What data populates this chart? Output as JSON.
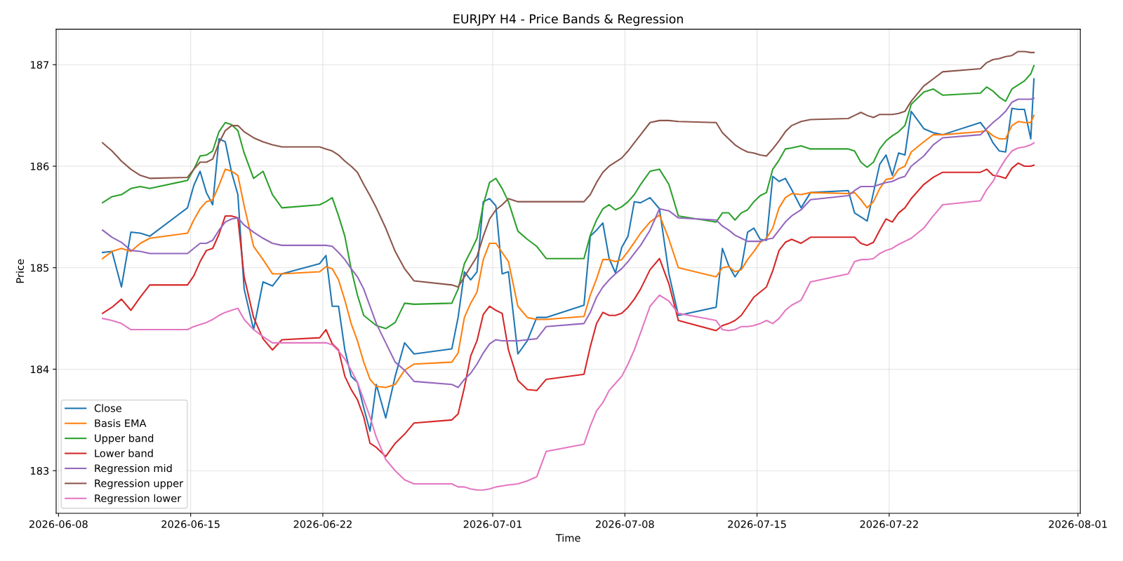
{
  "chart_data": {
    "type": "line",
    "title": "EURJPY H4 - Price Bands & Regression",
    "xlabel": "Time",
    "ylabel": "Price",
    "x": [
      "2026-06-10T08:00",
      "2026-06-10T20:00",
      "2026-06-11T08:00",
      "2026-06-11T20:00",
      "2026-06-12T08:00",
      "2026-06-12T20:00",
      "2026-06-14T20:00",
      "2026-06-15T04:00",
      "2026-06-15T12:00",
      "2026-06-15T20:00",
      "2026-06-16T04:00",
      "2026-06-16T12:00",
      "2026-06-16T20:00",
      "2026-06-17T04:00",
      "2026-06-17T12:00",
      "2026-06-17T20:00",
      "2026-06-18T08:00",
      "2026-06-18T20:00",
      "2026-06-19T08:00",
      "2026-06-19T20:00",
      "2026-06-21T20:00",
      "2026-06-22T04:00",
      "2026-06-22T12:00",
      "2026-06-22T20:00",
      "2026-06-23T04:00",
      "2026-06-23T12:00",
      "2026-06-23T20:00",
      "2026-06-24T04:00",
      "2026-06-24T12:00",
      "2026-06-24T20:00",
      "2026-06-25T08:00",
      "2026-06-25T20:00",
      "2026-06-26T08:00",
      "2026-06-26T20:00",
      "2026-06-28T20:00",
      "2026-06-29T04:00",
      "2026-06-29T12:00",
      "2026-06-29T20:00",
      "2026-06-30T04:00",
      "2026-06-30T12:00",
      "2026-06-30T20:00",
      "2026-07-01T04:00",
      "2026-07-01T12:00",
      "2026-07-01T20:00",
      "2026-07-02T08:00",
      "2026-07-02T20:00",
      "2026-07-03T08:00",
      "2026-07-03T20:00",
      "2026-07-05T20:00",
      "2026-07-06T04:00",
      "2026-07-06T12:00",
      "2026-07-06T20:00",
      "2026-07-07T04:00",
      "2026-07-07T12:00",
      "2026-07-07T20:00",
      "2026-07-08T04:00",
      "2026-07-08T12:00",
      "2026-07-08T20:00",
      "2026-07-09T08:00",
      "2026-07-09T20:00",
      "2026-07-10T08:00",
      "2026-07-10T20:00",
      "2026-07-12T20:00",
      "2026-07-13T04:00",
      "2026-07-13T12:00",
      "2026-07-13T20:00",
      "2026-07-14T04:00",
      "2026-07-14T12:00",
      "2026-07-14T20:00",
      "2026-07-15T04:00",
      "2026-07-15T12:00",
      "2026-07-15T20:00",
      "2026-07-16T04:00",
      "2026-07-16T12:00",
      "2026-07-16T20:00",
      "2026-07-17T08:00",
      "2026-07-17T20:00",
      "2026-07-19T20:00",
      "2026-07-20T04:00",
      "2026-07-20T12:00",
      "2026-07-20T20:00",
      "2026-07-21T04:00",
      "2026-07-21T12:00",
      "2026-07-21T20:00",
      "2026-07-22T04:00",
      "2026-07-22T12:00",
      "2026-07-22T20:00",
      "2026-07-23T04:00",
      "2026-07-23T20:00",
      "2026-07-24T08:00",
      "2026-07-24T20:00",
      "2026-07-26T20:00",
      "2026-07-27T04:00",
      "2026-07-27T12:00",
      "2026-07-27T20:00",
      "2026-07-28T04:00",
      "2026-07-28T12:00",
      "2026-07-28T20:00",
      "2026-07-29T04:00",
      "2026-07-29T12:00",
      "2026-07-29T16:00"
    ],
    "series": [
      {
        "name": "Close",
        "color": "#1f77b4",
        "values": [
          185.15,
          185.16,
          184.81,
          185.35,
          185.34,
          185.31,
          185.59,
          185.81,
          185.95,
          185.74,
          185.62,
          186.27,
          186.24,
          185.94,
          185.72,
          184.79,
          184.39,
          184.86,
          184.82,
          184.94,
          185.04,
          185.12,
          184.62,
          184.62,
          184.19,
          183.93,
          183.87,
          183.62,
          183.39,
          183.85,
          183.52,
          183.93,
          184.26,
          184.15,
          184.2,
          184.51,
          184.96,
          184.88,
          184.96,
          185.65,
          185.68,
          185.61,
          184.94,
          184.96,
          184.15,
          184.28,
          184.51,
          184.51,
          184.63,
          185.31,
          185.37,
          185.44,
          185.09,
          184.95,
          185.2,
          185.31,
          185.65,
          185.64,
          185.69,
          185.58,
          184.94,
          184.53,
          184.61,
          185.19,
          185.02,
          184.91,
          185.0,
          185.35,
          185.39,
          185.28,
          185.27,
          185.9,
          185.85,
          185.88,
          185.77,
          185.59,
          185.74,
          185.76,
          185.54,
          185.5,
          185.46,
          185.74,
          186.02,
          186.11,
          185.91,
          186.13,
          186.11,
          186.54,
          186.37,
          186.33,
          186.31,
          186.43,
          186.35,
          186.23,
          186.15,
          186.14,
          186.57,
          186.56,
          186.56,
          186.27,
          186.86
        ]
      },
      {
        "name": "Basis EMA",
        "color": "#ff7f0e",
        "values": [
          185.09,
          185.16,
          185.19,
          185.16,
          185.24,
          185.29,
          185.34,
          185.47,
          185.58,
          185.65,
          185.67,
          185.81,
          185.97,
          185.95,
          185.91,
          185.61,
          185.21,
          185.08,
          184.94,
          184.94,
          184.96,
          185.01,
          184.99,
          184.88,
          184.68,
          184.45,
          184.28,
          184.07,
          183.9,
          183.83,
          183.82,
          183.85,
          183.99,
          184.05,
          184.07,
          184.16,
          184.51,
          184.65,
          184.76,
          185.08,
          185.24,
          185.24,
          185.15,
          185.06,
          184.62,
          184.51,
          184.49,
          184.49,
          184.52,
          184.73,
          184.89,
          185.08,
          185.08,
          185.06,
          185.08,
          185.16,
          185.25,
          185.34,
          185.45,
          185.52,
          185.28,
          185.0,
          184.91,
          185.0,
          185.01,
          184.96,
          184.98,
          185.08,
          185.16,
          185.25,
          185.29,
          185.39,
          185.59,
          185.69,
          185.73,
          185.72,
          185.74,
          185.73,
          185.74,
          185.67,
          185.59,
          185.65,
          185.78,
          185.87,
          185.88,
          185.97,
          186.0,
          186.14,
          186.24,
          186.31,
          186.31,
          186.34,
          186.35,
          186.3,
          186.27,
          186.27,
          186.4,
          186.44,
          186.43,
          186.43,
          186.5
        ]
      },
      {
        "name": "Upper band",
        "color": "#2ca02c",
        "values": [
          185.64,
          185.7,
          185.72,
          185.78,
          185.8,
          185.78,
          185.86,
          185.97,
          186.1,
          186.11,
          186.15,
          186.34,
          186.43,
          186.41,
          186.35,
          186.13,
          185.88,
          185.95,
          185.72,
          185.59,
          185.62,
          185.65,
          185.69,
          185.51,
          185.31,
          184.99,
          184.73,
          184.53,
          184.48,
          184.43,
          184.4,
          184.46,
          184.65,
          184.64,
          184.65,
          184.79,
          185.04,
          185.16,
          185.29,
          185.62,
          185.84,
          185.88,
          185.78,
          185.65,
          185.36,
          185.28,
          185.21,
          185.09,
          185.09,
          185.32,
          185.47,
          185.58,
          185.62,
          185.57,
          185.6,
          185.65,
          185.72,
          185.82,
          185.95,
          185.97,
          185.82,
          185.51,
          185.45,
          185.54,
          185.54,
          185.47,
          185.54,
          185.57,
          185.65,
          185.71,
          185.74,
          185.97,
          186.06,
          186.17,
          186.18,
          186.2,
          186.17,
          186.17,
          186.15,
          186.04,
          185.99,
          186.04,
          186.17,
          186.25,
          186.3,
          186.34,
          186.4,
          186.61,
          186.73,
          186.76,
          186.7,
          186.72,
          186.78,
          186.74,
          186.68,
          186.64,
          186.76,
          186.8,
          186.84,
          186.91,
          186.99
        ]
      },
      {
        "name": "Lower band",
        "color": "#d62728",
        "values": [
          184.55,
          184.61,
          184.69,
          184.58,
          184.71,
          184.83,
          184.83,
          184.92,
          185.06,
          185.17,
          185.19,
          185.33,
          185.51,
          185.51,
          185.49,
          184.91,
          184.51,
          184.3,
          184.19,
          184.29,
          184.31,
          184.39,
          184.25,
          184.19,
          183.93,
          183.8,
          183.7,
          183.53,
          183.27,
          183.23,
          183.14,
          183.27,
          183.36,
          183.47,
          183.5,
          183.56,
          183.82,
          184.13,
          184.28,
          184.54,
          184.62,
          184.58,
          184.55,
          184.19,
          183.89,
          183.8,
          183.79,
          183.9,
          183.95,
          184.22,
          184.45,
          184.56,
          184.53,
          184.53,
          184.55,
          184.61,
          184.69,
          184.79,
          184.98,
          185.09,
          184.84,
          184.48,
          184.38,
          184.43,
          184.45,
          184.48,
          184.53,
          184.62,
          184.71,
          184.76,
          184.81,
          184.97,
          185.17,
          185.25,
          185.28,
          185.24,
          185.3,
          185.3,
          185.3,
          185.24,
          185.22,
          185.25,
          185.37,
          185.48,
          185.45,
          185.54,
          185.59,
          185.68,
          185.82,
          185.89,
          185.94,
          185.94,
          185.97,
          185.91,
          185.9,
          185.88,
          185.98,
          186.03,
          186.0,
          186.0,
          186.01
        ]
      },
      {
        "name": "Regression mid",
        "color": "#9467bd",
        "values": [
          185.37,
          185.3,
          185.25,
          185.17,
          185.16,
          185.14,
          185.14,
          185.19,
          185.24,
          185.24,
          185.27,
          185.37,
          185.45,
          185.48,
          185.49,
          185.42,
          185.35,
          185.29,
          185.24,
          185.22,
          185.22,
          185.22,
          185.21,
          185.15,
          185.08,
          184.99,
          184.91,
          184.79,
          184.62,
          184.45,
          184.26,
          184.07,
          183.99,
          183.88,
          183.85,
          183.82,
          183.9,
          183.96,
          184.05,
          184.16,
          184.25,
          184.29,
          184.28,
          184.28,
          184.28,
          184.29,
          184.3,
          184.42,
          184.45,
          184.56,
          184.71,
          184.81,
          184.88,
          184.94,
          184.99,
          185.06,
          185.14,
          185.22,
          185.37,
          185.58,
          185.56,
          185.49,
          185.47,
          185.41,
          185.37,
          185.32,
          185.29,
          185.26,
          185.26,
          185.26,
          185.28,
          185.29,
          185.37,
          185.45,
          185.51,
          185.57,
          185.67,
          185.71,
          185.76,
          185.8,
          185.8,
          185.8,
          185.82,
          185.84,
          185.85,
          185.88,
          185.9,
          186.0,
          186.1,
          186.21,
          186.28,
          186.31,
          186.37,
          186.43,
          186.48,
          186.54,
          186.63,
          186.66,
          186.66,
          186.66,
          186.67
        ]
      },
      {
        "name": "Regression upper",
        "color": "#8c564b",
        "values": [
          186.23,
          186.15,
          186.05,
          185.97,
          185.91,
          185.88,
          185.89,
          185.97,
          186.04,
          186.04,
          186.07,
          186.23,
          186.35,
          186.4,
          186.4,
          186.34,
          186.28,
          186.24,
          186.21,
          186.19,
          186.19,
          186.17,
          186.15,
          186.11,
          186.05,
          186.0,
          185.94,
          185.82,
          185.71,
          185.59,
          185.39,
          185.16,
          184.99,
          184.87,
          184.83,
          184.81,
          184.91,
          185.01,
          185.11,
          185.31,
          185.48,
          185.57,
          185.62,
          185.68,
          185.65,
          185.65,
          185.65,
          185.65,
          185.65,
          185.72,
          185.84,
          185.94,
          186.0,
          186.04,
          186.08,
          186.15,
          186.23,
          186.31,
          186.43,
          186.45,
          186.45,
          186.44,
          186.43,
          186.33,
          186.27,
          186.21,
          186.17,
          186.14,
          186.13,
          186.11,
          186.1,
          186.17,
          186.25,
          186.34,
          186.4,
          186.44,
          186.46,
          186.47,
          186.5,
          186.53,
          186.5,
          186.48,
          186.51,
          186.51,
          186.51,
          186.52,
          186.54,
          186.64,
          186.79,
          186.86,
          186.93,
          186.96,
          187.02,
          187.05,
          187.06,
          187.08,
          187.09,
          187.13,
          187.13,
          187.12,
          187.12
        ]
      },
      {
        "name": "Regression lower",
        "color": "#e377c2",
        "values": [
          184.5,
          184.48,
          184.45,
          184.39,
          184.39,
          184.39,
          184.39,
          184.42,
          184.44,
          184.46,
          184.49,
          184.53,
          184.56,
          184.58,
          184.6,
          184.49,
          184.39,
          184.32,
          184.26,
          184.26,
          184.26,
          184.26,
          184.24,
          184.18,
          184.1,
          183.99,
          183.87,
          183.7,
          183.53,
          183.33,
          183.11,
          183.0,
          182.91,
          182.87,
          182.87,
          182.84,
          182.84,
          182.82,
          182.81,
          182.81,
          182.82,
          182.84,
          182.85,
          182.86,
          182.87,
          182.9,
          182.94,
          183.19,
          183.26,
          183.44,
          183.59,
          183.67,
          183.79,
          183.86,
          183.93,
          184.05,
          184.19,
          184.36,
          184.62,
          184.73,
          184.67,
          184.55,
          184.48,
          184.39,
          184.38,
          184.39,
          184.42,
          184.42,
          184.43,
          184.45,
          184.48,
          184.45,
          184.5,
          184.58,
          184.63,
          184.68,
          184.86,
          184.94,
          185.06,
          185.08,
          185.08,
          185.09,
          185.14,
          185.17,
          185.19,
          185.23,
          185.26,
          185.29,
          185.39,
          185.51,
          185.62,
          185.66,
          185.77,
          185.85,
          185.97,
          186.07,
          186.15,
          186.18,
          186.19,
          186.21,
          186.23
        ]
      }
    ],
    "xlim": [
      "2026-06-07T21:00",
      "2026-08-01T03:00"
    ],
    "xticks": [
      "2026-06-08",
      "2026-06-15",
      "2026-06-22",
      "2026-07-01",
      "2026-07-08",
      "2026-07-15",
      "2026-07-22",
      "2026-08-01"
    ],
    "ylim": [
      182.58,
      187.35
    ],
    "yticks": [
      183,
      184,
      185,
      186,
      187
    ],
    "grid": true,
    "legend": "bottom left",
    "line_style": "solid",
    "marker": "none"
  }
}
